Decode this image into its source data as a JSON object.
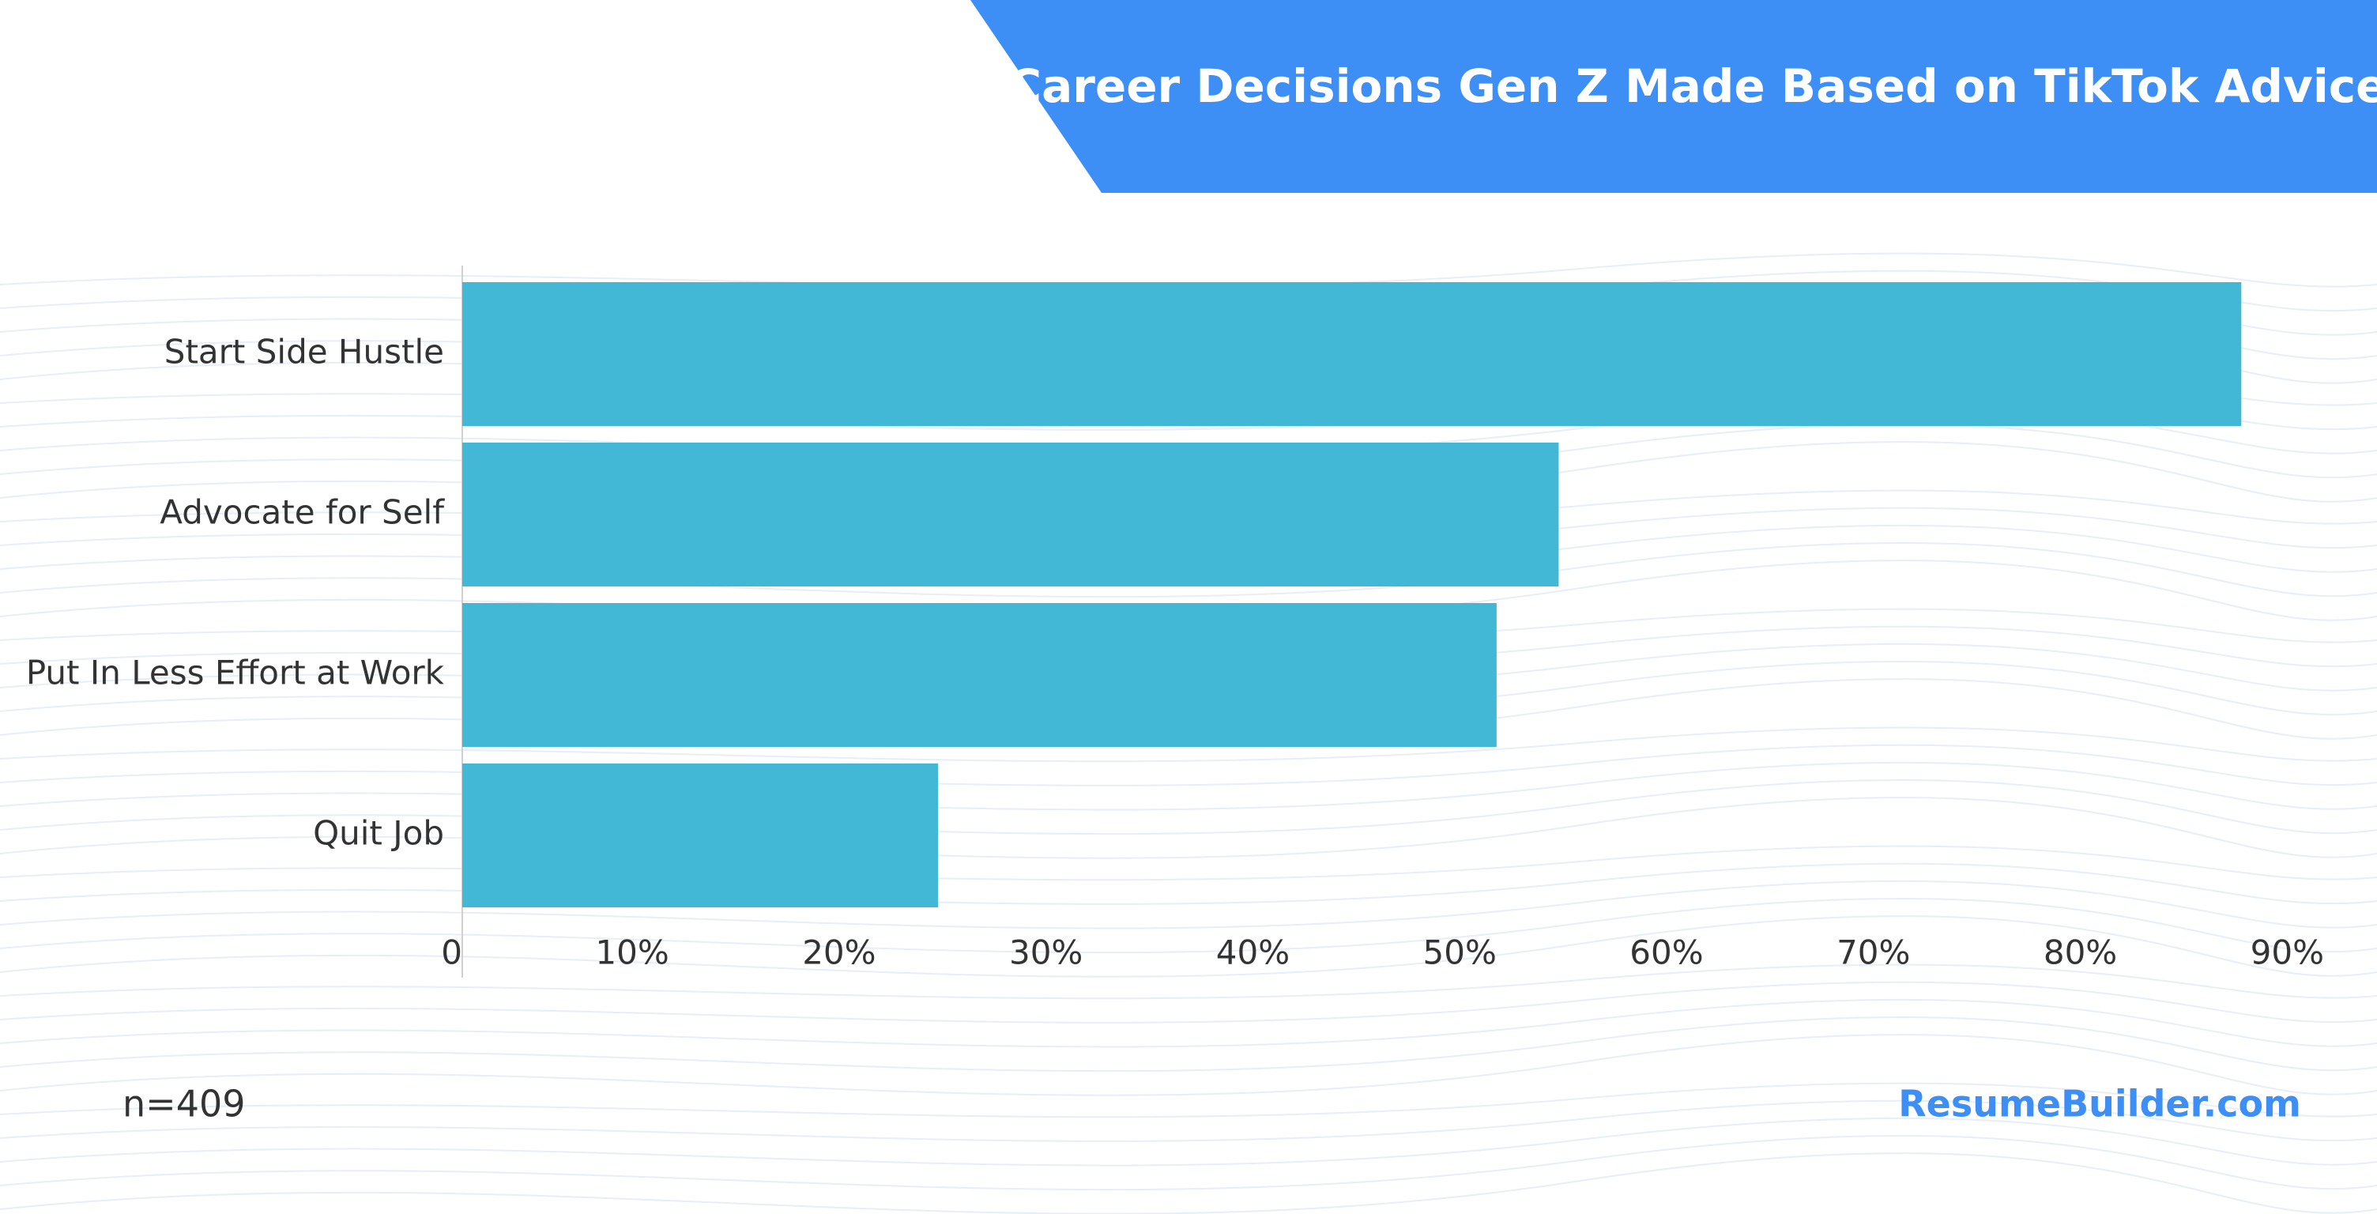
{
  "chart_data": {
    "type": "bar",
    "orientation": "horizontal",
    "title": "Career Decisions Gen Z Made Based on TikTok Advice",
    "categories": [
      "Start Side Hustle",
      "Advocate for Self",
      "Put In Less Effort at Work",
      "Quit Job"
    ],
    "values": [
      86,
      53,
      50,
      23
    ],
    "color": "#42b7d6",
    "xlim": [
      0,
      90
    ],
    "xticks": [
      0,
      {
        "value": 10,
        "label": "10%"
      },
      {
        "value": 20,
        "label": "20%"
      },
      {
        "value": 30,
        "label": "30%"
      },
      {
        "value": 40,
        "label": "40%"
      },
      {
        "value": 50,
        "label": "50%"
      },
      {
        "value": 60,
        "label": "60%"
      },
      {
        "value": 70,
        "label": "70%"
      },
      {
        "value": 80,
        "label": "80%"
      },
      {
        "value": 90,
        "label": "90%"
      }
    ],
    "grid": false,
    "note": "n=409",
    "source": "ResumeBuilder.com"
  }
}
